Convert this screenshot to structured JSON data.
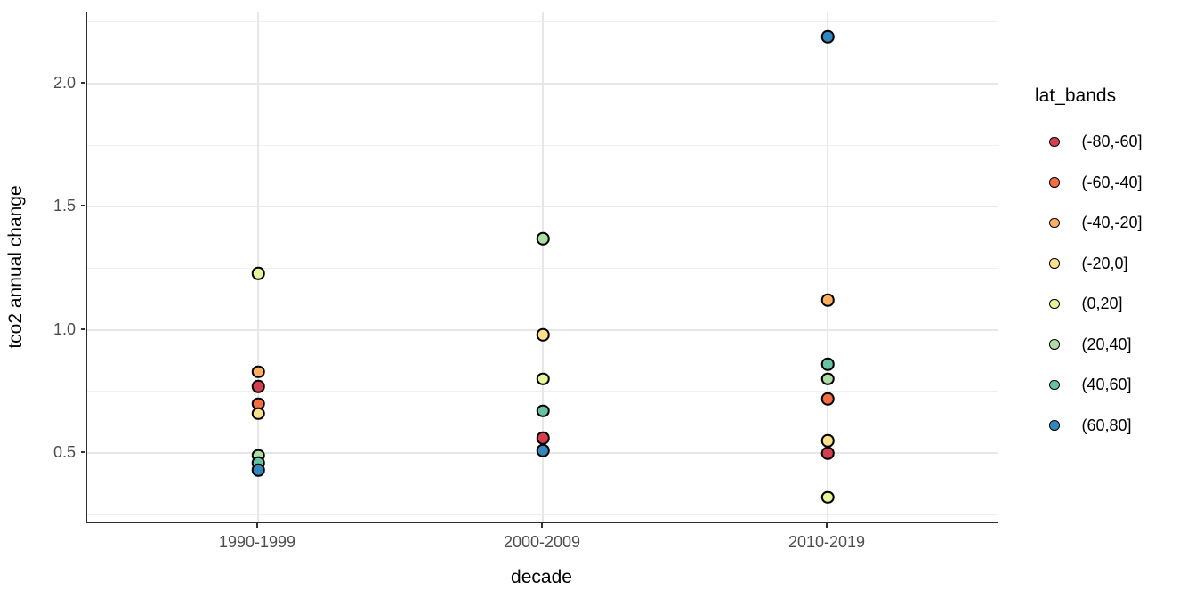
{
  "chart_data": {
    "type": "scatter",
    "title": "",
    "xlabel": "decade",
    "ylabel": "tco2 annual change",
    "legend_title": "lat_bands",
    "legend_position": "right",
    "categories": [
      "1990-1999",
      "2000-2009",
      "2010-2019"
    ],
    "yticks": [
      0.5,
      1.0,
      1.5,
      2.0
    ],
    "ytick_labels": [
      "0.5",
      "1.0",
      "1.5",
      "2.0"
    ],
    "minor_yticks": [
      0.25,
      0.75,
      1.25,
      1.75,
      2.25
    ],
    "ylim": [
      0.22,
      2.3
    ],
    "grid": true,
    "panel_border_color": "#2e2e2e",
    "gridline_color": "#e7e7e7",
    "point_outline_color": "#000000",
    "series": [
      {
        "name": "(-80,-60]",
        "color": "#d53e4f",
        "values": [
          0.77,
          0.56,
          0.5
        ]
      },
      {
        "name": "(-60,-40]",
        "color": "#f46d43",
        "values": [
          0.7,
          null,
          0.72
        ]
      },
      {
        "name": "(-40,-20]",
        "color": "#fdae61",
        "values": [
          0.83,
          null,
          1.12
        ]
      },
      {
        "name": "(-20,0]",
        "color": "#fee08b",
        "values": [
          0.66,
          0.98,
          0.55
        ]
      },
      {
        "name": "(0,20]",
        "color": "#e6f598",
        "values": [
          1.23,
          0.8,
          0.32
        ]
      },
      {
        "name": "(20,40]",
        "color": "#abdda4",
        "values": [
          0.49,
          1.37,
          0.8
        ]
      },
      {
        "name": "(40,60]",
        "color": "#66c2a5",
        "values": [
          0.46,
          0.67,
          0.86
        ]
      },
      {
        "name": "(60,80]",
        "color": "#3288bd",
        "values": [
          0.43,
          0.51,
          2.19
        ]
      }
    ]
  }
}
